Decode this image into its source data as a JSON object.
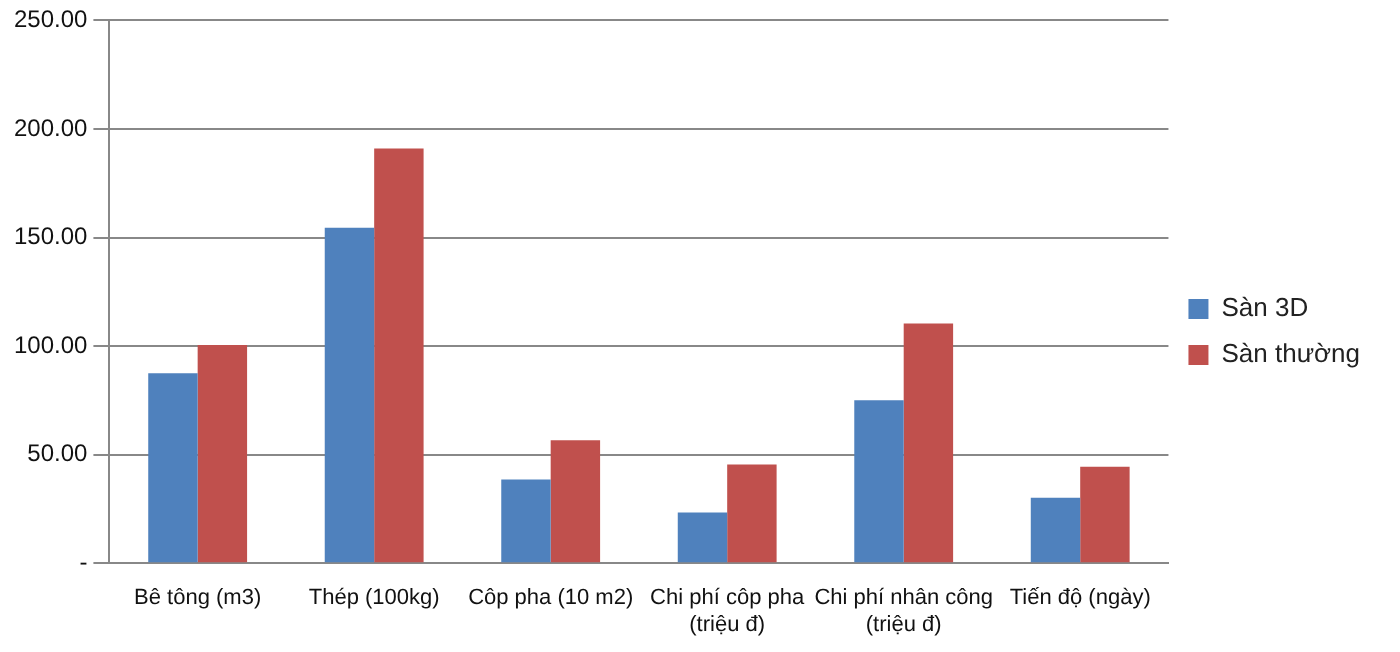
{
  "chart_data": {
    "type": "bar",
    "categories": [
      "Bê tông (m3)",
      "Thép (100kg)",
      "Côp pha (10 m2)",
      "Chi phí côp pha (triệu đ)",
      "Chi phí nhân công (triệu đ)",
      "Tiến độ (ngày)"
    ],
    "series": [
      {
        "name": "Sàn 3D",
        "color": "#4f81bd",
        "values": [
          87.5,
          154.5,
          38.5,
          23.3,
          75,
          30.2
        ]
      },
      {
        "name": "Sàn thường",
        "color": "#c0504d",
        "values": [
          100.5,
          191,
          56.6,
          45.5,
          110.4,
          44.4
        ]
      }
    ],
    "ylim": [
      0,
      250
    ],
    "yticks": [
      {
        "value": 0,
        "label": "-"
      },
      {
        "value": 50,
        "label": "50.00"
      },
      {
        "value": 100,
        "label": "100.00"
      },
      {
        "value": 150,
        "label": "150.00"
      },
      {
        "value": 200,
        "label": "200.00"
      },
      {
        "value": 250,
        "label": "250.00"
      }
    ],
    "grid": "y",
    "legend": "right"
  }
}
